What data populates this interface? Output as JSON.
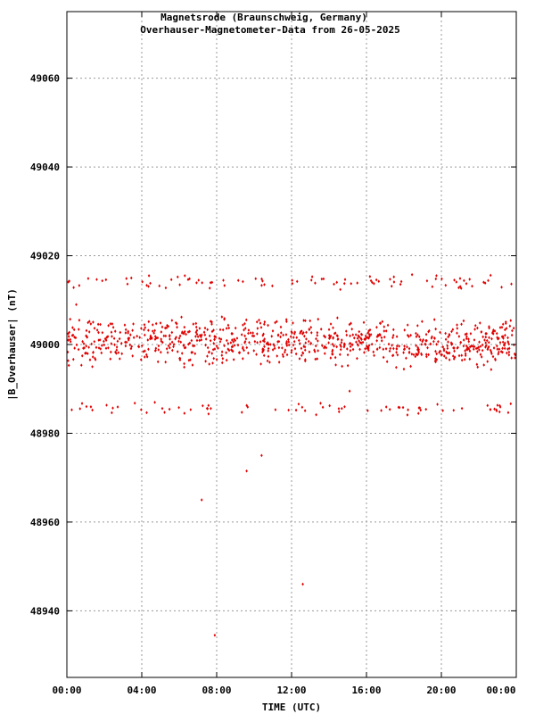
{
  "chart_data": {
    "type": "scatter",
    "title": "Magnetsrode (Braunschweig, Germany)",
    "subtitle": "Overhauser-Magnetometer-Data from 26-05-2025",
    "xlabel": "TIME (UTC)",
    "ylabel": "|B_Overhauser| (nT)",
    "xlim": [
      0,
      24
    ],
    "ylim": [
      48925,
      49075
    ],
    "x_ticks": [
      {
        "value": 0,
        "label": "00:00"
      },
      {
        "value": 4,
        "label": "04:00"
      },
      {
        "value": 8,
        "label": "08:00"
      },
      {
        "value": 12,
        "label": "12:00"
      },
      {
        "value": 16,
        "label": "16:00"
      },
      {
        "value": 20,
        "label": "20:00"
      },
      {
        "value": 24,
        "label": "00:00"
      }
    ],
    "y_ticks": [
      {
        "value": 48940,
        "label": "48940"
      },
      {
        "value": 48960,
        "label": "48960"
      },
      {
        "value": 48980,
        "label": "48980"
      },
      {
        "value": 49000,
        "label": "49000"
      },
      {
        "value": 49020,
        "label": "49020"
      },
      {
        "value": 49040,
        "label": "49040"
      },
      {
        "value": 49060,
        "label": "49060"
      }
    ],
    "grid": true,
    "marker_color": "#e00000",
    "series": [
      {
        "bands": [
          {
            "center": 49000,
            "spread": 2.2,
            "count": 720
          },
          {
            "center": 49003.5,
            "spread": 1.2,
            "count": 140
          },
          {
            "center": 49014.2,
            "spread": 0.9,
            "count": 90
          },
          {
            "center": 48985.6,
            "spread": 0.7,
            "count": 75
          }
        ],
        "outliers": [
          {
            "x": 0.5,
            "y": 49009
          },
          {
            "x": 6.3,
            "y": 49015.5
          },
          {
            "x": 7.2,
            "y": 48965
          },
          {
            "x": 7.9,
            "y": 48934.5
          },
          {
            "x": 9.6,
            "y": 48971.5
          },
          {
            "x": 10.4,
            "y": 48975
          },
          {
            "x": 12.6,
            "y": 48946
          },
          {
            "x": 15.1,
            "y": 48989.5
          }
        ]
      }
    ]
  }
}
